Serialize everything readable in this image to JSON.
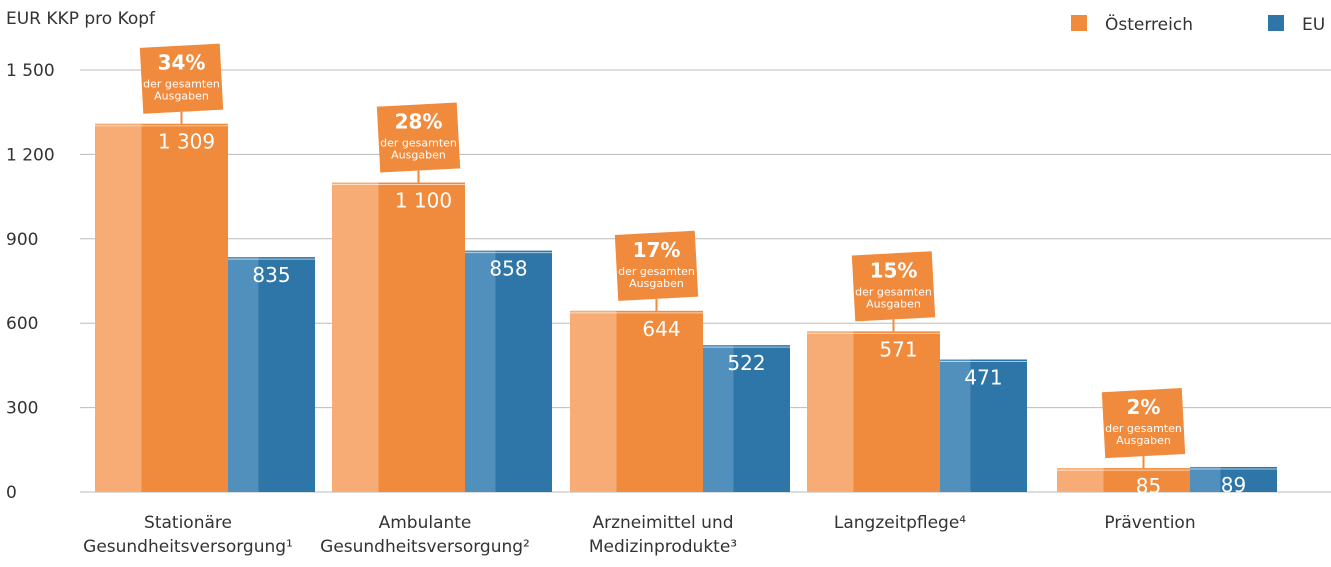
{
  "chart_data": {
    "type": "bar",
    "y_label": "EUR KKP pro Kopf",
    "categories": [
      "Stationäre\nGesundheitsversorgung¹",
      "Ambulante\nGesundheitsversorgung²",
      "Arzneimittel und\nMedizinprodukte³",
      "Langzeitpflege⁴",
      "Prävention"
    ],
    "series": [
      {
        "name": "Österreich",
        "color": "#f08a3c",
        "values": [
          1309,
          1100,
          644,
          571,
          85
        ],
        "value_labels": [
          "1 309",
          "1 100",
          "644",
          "571",
          "85"
        ]
      },
      {
        "name": "EU",
        "color": "#2e76a8",
        "values": [
          835,
          858,
          522,
          471,
          89
        ]
      }
    ],
    "annotations": [
      {
        "label": "34%",
        "lines": [
          "der gesamten",
          "Ausgaben"
        ]
      },
      {
        "label": "28%",
        "lines": [
          "der gesamten",
          "Ausgaben"
        ]
      },
      {
        "label": "17%",
        "lines": [
          "der gesamten",
          "Ausgaben"
        ]
      },
      {
        "label": "15%",
        "lines": [
          "der gesamten",
          "Ausgaben"
        ]
      },
      {
        "label": "2%",
        "lines": [
          "der gesamten",
          "Ausgaben"
        ]
      }
    ],
    "ylim": [
      0,
      1500
    ],
    "yticks": [
      0,
      300,
      600,
      900,
      {
        "value": 1200,
        "label": "1 200"
      },
      {
        "value": 1500,
        "label": "1 500"
      }
    ],
    "grid": true,
    "legend": "top-right"
  }
}
